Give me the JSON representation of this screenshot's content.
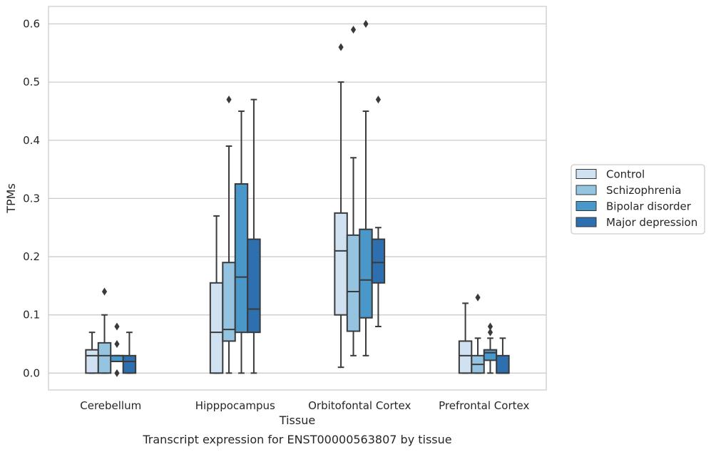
{
  "chart_data": {
    "type": "box",
    "caption": "Transcript expression for ENST00000563807 by tissue",
    "xlabel": "Tissue",
    "ylabel": "TPMs",
    "ylim": [
      -0.029,
      0.63
    ],
    "yticks": [
      "0.0",
      "0.1",
      "0.2",
      "0.3",
      "0.4",
      "0.5",
      "0.6"
    ],
    "grid": "horizontal",
    "legend_position": "right",
    "categories": [
      "Cerebellum",
      "Hipppocampus",
      "Orbitofontal Cortex",
      "Prefrontal Cortex"
    ],
    "series": [
      {
        "name": "Control",
        "color": "#d0e1f2",
        "boxes": [
          {
            "min": 0.0,
            "q1": 0.0,
            "median": 0.03,
            "q3": 0.04,
            "max": 0.07,
            "outliers": []
          },
          {
            "min": 0.0,
            "q1": 0.0,
            "median": 0.07,
            "q3": 0.155,
            "max": 0.27,
            "outliers": []
          },
          {
            "min": 0.01,
            "q1": 0.1,
            "median": 0.21,
            "q3": 0.275,
            "max": 0.5,
            "outliers": [
              0.56
            ]
          },
          {
            "min": 0.0,
            "q1": 0.0,
            "median": 0.03,
            "q3": 0.055,
            "max": 0.12,
            "outliers": []
          }
        ]
      },
      {
        "name": "Schizophrenia",
        "color": "#94c4df",
        "boxes": [
          {
            "min": 0.0,
            "q1": 0.0,
            "median": 0.03,
            "q3": 0.052,
            "max": 0.1,
            "outliers": [
              0.14
            ]
          },
          {
            "min": 0.0,
            "q1": 0.055,
            "median": 0.075,
            "q3": 0.19,
            "max": 0.39,
            "outliers": [
              0.47
            ]
          },
          {
            "min": 0.03,
            "q1": 0.072,
            "median": 0.14,
            "q3": 0.237,
            "max": 0.37,
            "outliers": [
              0.59
            ]
          },
          {
            "min": 0.0,
            "q1": 0.0,
            "median": 0.015,
            "q3": 0.03,
            "max": 0.06,
            "outliers": [
              0.13
            ]
          }
        ]
      },
      {
        "name": "Bipolar disorder",
        "color": "#4a98c9",
        "boxes": [
          {
            "min": 0.02,
            "q1": 0.02,
            "median": 0.03,
            "q3": 0.03,
            "max": 0.03,
            "outliers": [
              0.08,
              0.05,
              0.0
            ]
          },
          {
            "min": 0.0,
            "q1": 0.07,
            "median": 0.165,
            "q3": 0.325,
            "max": 0.45,
            "outliers": []
          },
          {
            "min": 0.03,
            "q1": 0.095,
            "median": 0.16,
            "q3": 0.247,
            "max": 0.45,
            "outliers": [
              0.6
            ]
          },
          {
            "min": 0.0,
            "q1": 0.022,
            "median": 0.035,
            "q3": 0.04,
            "max": 0.06,
            "outliers": [
              0.08,
              0.07
            ]
          }
        ]
      },
      {
        "name": "Major depression",
        "color": "#2e6fb0",
        "boxes": [
          {
            "min": 0.0,
            "q1": 0.0,
            "median": 0.02,
            "q3": 0.03,
            "max": 0.07,
            "outliers": []
          },
          {
            "min": 0.0,
            "q1": 0.07,
            "median": 0.11,
            "q3": 0.23,
            "max": 0.47,
            "outliers": []
          },
          {
            "min": 0.08,
            "q1": 0.155,
            "median": 0.19,
            "q3": 0.23,
            "max": 0.25,
            "outliers": [
              0.47
            ]
          },
          {
            "min": 0.0,
            "q1": 0.0,
            "median": 0.0,
            "q3": 0.03,
            "max": 0.06,
            "outliers": []
          }
        ]
      }
    ]
  }
}
